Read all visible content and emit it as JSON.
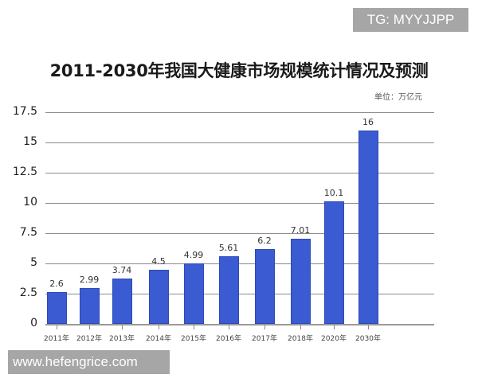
{
  "watermarks": {
    "top_right": "TG: MYYJJPP",
    "bottom_left": "www.hefengrice.com"
  },
  "chart_data": {
    "type": "bar",
    "title": "2011-2030年我国大健康市场规模统计情况及预测",
    "unit_label": "单位：万亿元",
    "xlabel": "",
    "ylabel": "",
    "categories": [
      "2011年",
      "2012年",
      "2013年",
      "2014年",
      "2015年",
      "2016年",
      "2017年",
      "2018年",
      "2020年",
      "2030年"
    ],
    "values": [
      2.6,
      2.99,
      3.74,
      4.5,
      4.99,
      5.61,
      6.2,
      7.01,
      10.1,
      16
    ],
    "value_labels": [
      "2.6",
      "2.99",
      "3.74",
      "4.5",
      "4.99",
      "5.61",
      "6.2",
      "7.01",
      "10.1",
      "16"
    ],
    "yticks": [
      "0",
      "2.5",
      "5",
      "7.5",
      "10",
      "12.5",
      "15",
      "17.5"
    ],
    "ylim": [
      0,
      17.5
    ],
    "grid": true,
    "legend": null,
    "bar_color": "#3a5bd1"
  }
}
